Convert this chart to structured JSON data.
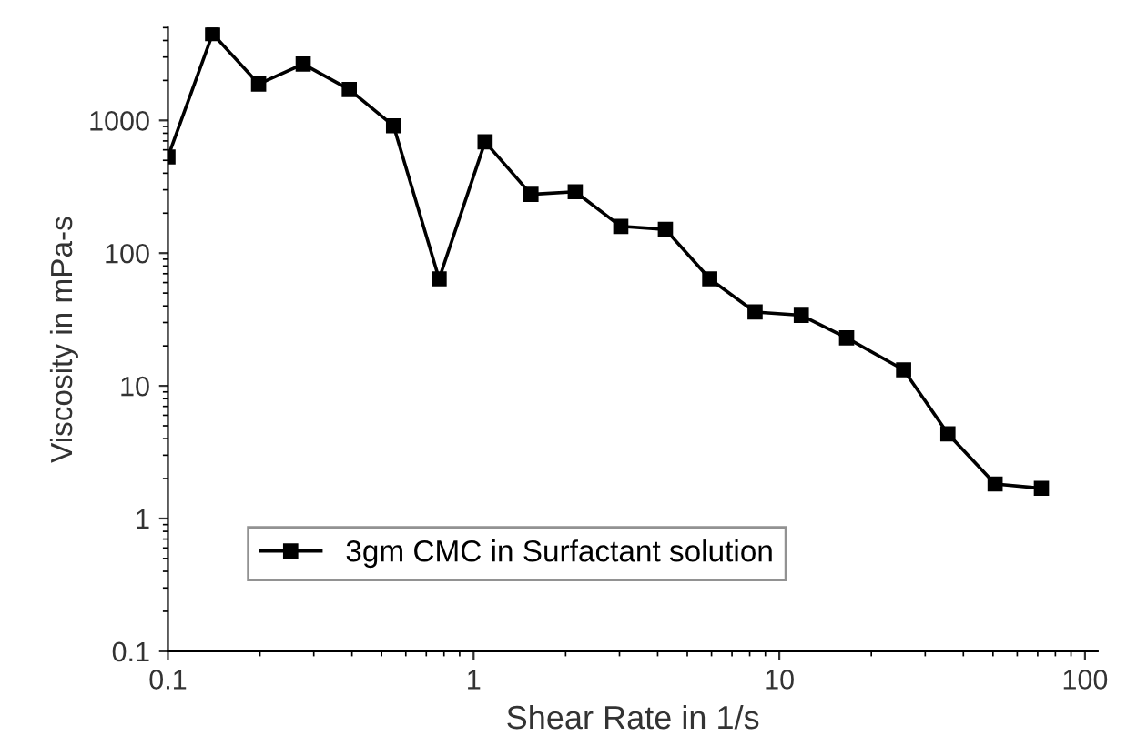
{
  "chart_data": {
    "type": "line",
    "xlabel": "Shear Rate in 1/s",
    "ylabel": "Viscosity in mPa-s",
    "x": [
      0.1,
      0.14,
      0.198,
      0.277,
      0.392,
      0.547,
      0.771,
      1.09,
      1.54,
      2.15,
      3.03,
      4.24,
      5.92,
      8.33,
      11.8,
      16.6,
      25.5,
      35.6,
      50.8,
      72
    ],
    "series": [
      {
        "name": "3gm CMC in Surfactant solution",
        "color": "#000000",
        "values": [
          530,
          4500,
          1880,
          2660,
          1710,
          910,
          64,
          690,
          277,
          290,
          159,
          151,
          64,
          36,
          34,
          23,
          13.2,
          4.35,
          1.82,
          1.69
        ]
      }
    ],
    "log": "xy",
    "xlim": [
      0.1,
      110
    ],
    "ylim": [
      0.1,
      5000
    ],
    "xticks": [
      0.1,
      1,
      10,
      100
    ],
    "yticks": [
      0.1,
      1,
      10,
      100,
      1000
    ],
    "grid": false,
    "legend": "bottom left",
    "marker": "square",
    "line_style": "solid"
  }
}
